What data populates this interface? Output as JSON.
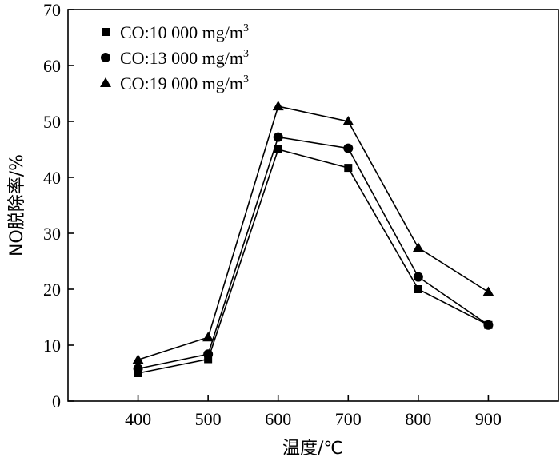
{
  "chart_data": {
    "type": "line",
    "xlabel": "温度/℃",
    "ylabel": "NO脱除率/%",
    "x": [
      400,
      500,
      600,
      700,
      800,
      900
    ],
    "xlim": [
      300,
      1000
    ],
    "ylim": [
      0,
      70
    ],
    "x_ticks": [
      "400",
      "500",
      "600",
      "700",
      "800",
      "900"
    ],
    "y_ticks": [
      "0",
      "10",
      "20",
      "30",
      "40",
      "50",
      "60",
      "70"
    ],
    "legend_position": "top-left",
    "grid": false,
    "series": [
      {
        "name": "CO:10 000 mg/m",
        "superscript": "3",
        "marker": "square",
        "values": [
          5.0,
          7.5,
          45.0,
          41.7,
          20.0,
          13.6
        ]
      },
      {
        "name": "CO:13 000 mg/m",
        "superscript": "3",
        "marker": "circle",
        "values": [
          5.8,
          8.4,
          47.2,
          45.2,
          22.2,
          13.6
        ]
      },
      {
        "name": "CO:19 000 mg/m",
        "superscript": "3",
        "marker": "triangle",
        "values": [
          7.4,
          11.4,
          52.7,
          50.0,
          27.4,
          19.5
        ]
      }
    ]
  }
}
